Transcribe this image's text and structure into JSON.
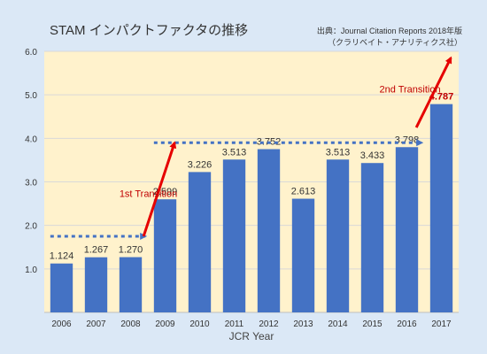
{
  "chart_data": {
    "type": "bar",
    "title": "STAM インパクトファクタの推移",
    "source_line1": "出典：Journal Citation Reports 2018年版",
    "source_line2": "（クラリベイト・アナリティクス社）",
    "xlabel": "JCR Year",
    "ylabel": "",
    "ylim": [
      0,
      6
    ],
    "yticks": [
      "1.0",
      "2.0",
      "3.0",
      "4.0",
      "5.0",
      "6.0"
    ],
    "grid": true,
    "categories": [
      "2006",
      "2007",
      "2008",
      "2009",
      "2010",
      "2011",
      "2012",
      "2013",
      "2014",
      "2015",
      "2016",
      "2017"
    ],
    "values": [
      1.124,
      1.267,
      1.27,
      2.599,
      3.226,
      3.513,
      3.752,
      2.613,
      3.513,
      3.433,
      3.798,
      4.787
    ],
    "value_labels": [
      "1.124",
      "1.267",
      "1.270",
      "2.599",
      "3.226",
      "3.513",
      "3.752",
      "2.613",
      "3.513",
      "3.433",
      "3.798",
      "4.787"
    ],
    "highlight_label_index": 11,
    "bar_color": "#4472c4",
    "plot_bg": "#fff2cc",
    "page_bg": "#dbe8f6",
    "annotation_color": "#c00000",
    "annotations": [
      {
        "text": "1st Transition",
        "from_index": 2,
        "to_index": 3
      },
      {
        "text": "2nd Transition",
        "from_index": 10,
        "to_index": 11
      }
    ],
    "plateaus": [
      {
        "level": 1.75,
        "from_index": 0,
        "to_index": 2
      },
      {
        "level": 3.9,
        "from_index": 3,
        "to_index": 10
      }
    ]
  }
}
